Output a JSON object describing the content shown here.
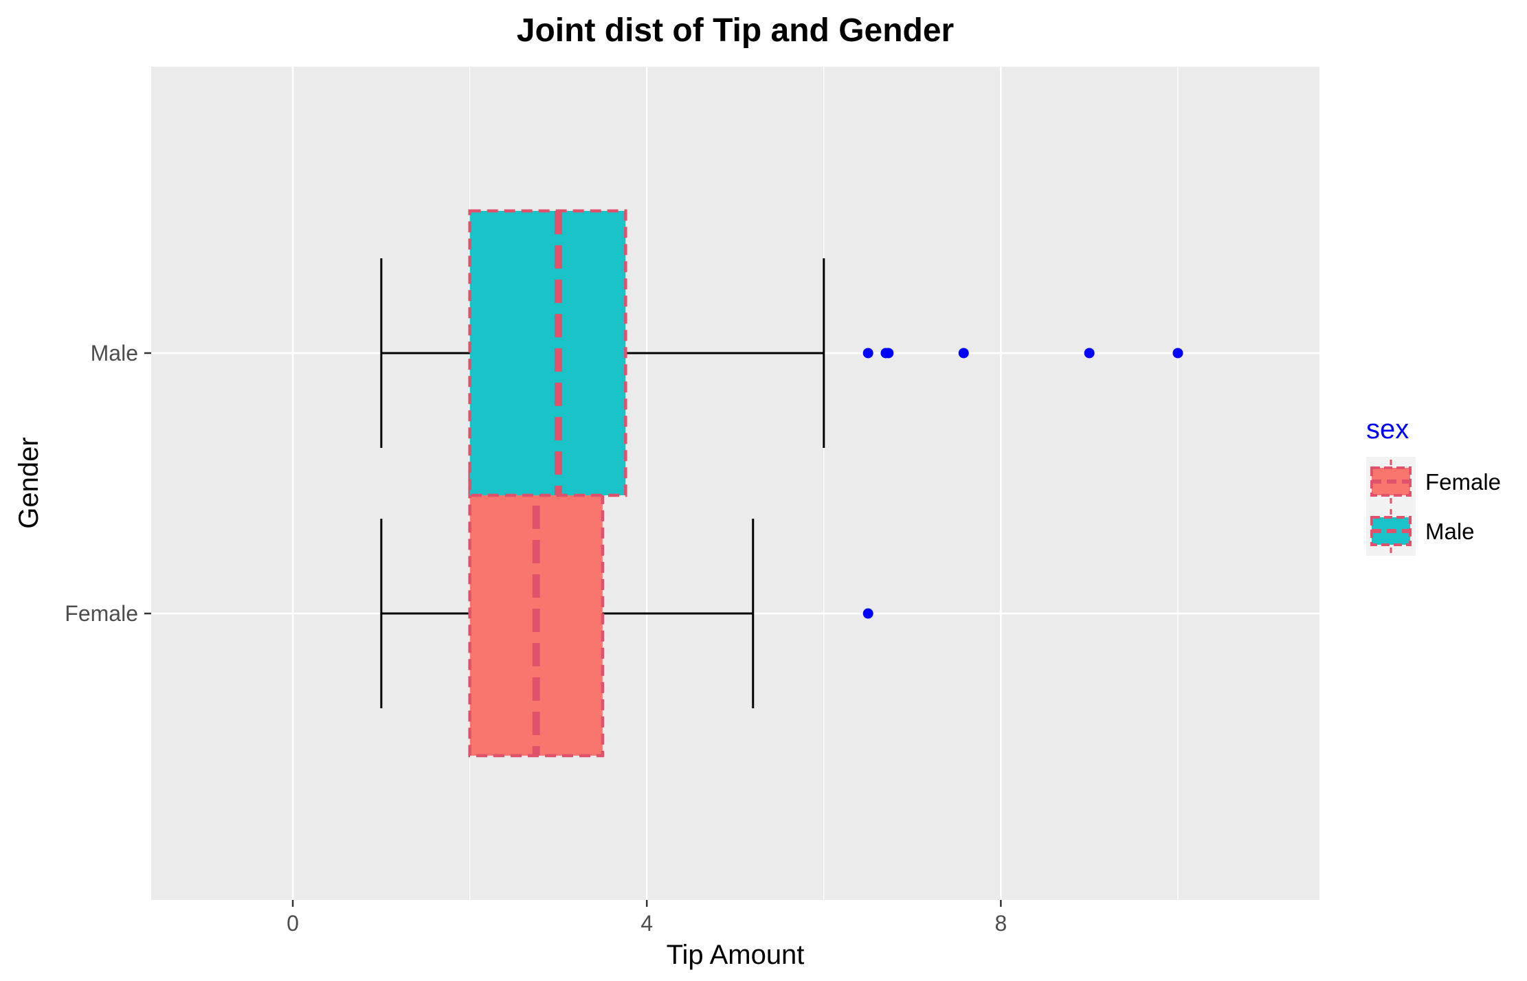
{
  "chart_data": {
    "type": "boxplot",
    "orientation": "horizontal",
    "title": "Joint dist of Tip and Gender",
    "xlabel": "Tip Amount",
    "ylabel": "Gender",
    "xlim": [
      -1.6,
      11.6
    ],
    "xticks": [
      0,
      4,
      8
    ],
    "xtick_labels": [
      "0",
      "4",
      "8"
    ],
    "categories": [
      "Female",
      "Male"
    ],
    "grid": true,
    "series": [
      {
        "name": "Female",
        "fill": "#f8766d",
        "whisker_low": 1.0,
        "q1": 2.0,
        "median": 2.75,
        "q3": 3.5,
        "whisker_high": 5.2,
        "outliers": [
          6.5
        ]
      },
      {
        "name": "Male",
        "fill": "#19c3c8",
        "whisker_low": 1.0,
        "q1": 2.0,
        "median": 3.0,
        "q3": 3.76,
        "whisker_high": 6.0,
        "outliers": [
          6.5,
          6.7,
          6.73,
          7.58,
          9.0,
          10.0
        ]
      }
    ],
    "legend": {
      "title": "sex",
      "title_color": "#0000ff",
      "position": "right",
      "entries": [
        "Female",
        "Male"
      ]
    },
    "style": {
      "panel_background": "#ebebeb",
      "gridline_color": "#ffffff",
      "box_outline_color": "#e0526b",
      "box_outline_dash": "dashed",
      "whisker_color": "#000000",
      "outlier_color": "#0000ff"
    }
  }
}
